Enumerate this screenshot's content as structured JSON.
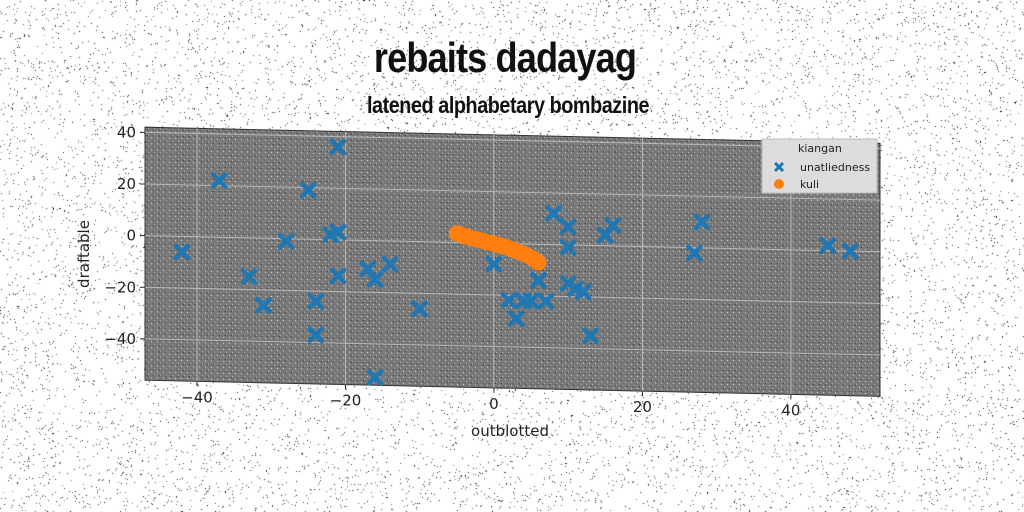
{
  "header": {
    "title": "rebaits dadayag",
    "subtitle": "latened alphabetary bombazine"
  },
  "chart_data": {
    "type": "scatter",
    "title": "rebaits dadayag",
    "subtitle": "latened alphabetary bombazine",
    "xlabel": "outblotted",
    "ylabel": "draftable",
    "xlim": [
      -47,
      52
    ],
    "ylim": [
      -56,
      42
    ],
    "xticks": [
      -40,
      -20,
      0,
      20,
      40
    ],
    "yticks": [
      40,
      20,
      0,
      -20,
      -40
    ],
    "xtick_labels": [
      "−40",
      "−20",
      "0",
      "20",
      "40"
    ],
    "ytick_labels": [
      "40",
      "20",
      "0",
      "−20",
      "−40"
    ],
    "grid": true,
    "legend": {
      "title": "kiangan",
      "placement": "top-right"
    },
    "series": [
      {
        "name": "unatliedness",
        "marker": "x",
        "color": "#1f77b4",
        "points": [
          {
            "x": -42,
            "y": -6
          },
          {
            "x": -37,
            "y": 22
          },
          {
            "x": -33,
            "y": -15
          },
          {
            "x": -31,
            "y": -26
          },
          {
            "x": -28,
            "y": -1
          },
          {
            "x": -25,
            "y": 19
          },
          {
            "x": -24,
            "y": -24
          },
          {
            "x": -24,
            "y": -37
          },
          {
            "x": -22,
            "y": 2
          },
          {
            "x": -21,
            "y": 3
          },
          {
            "x": -21,
            "y": -14
          },
          {
            "x": -21,
            "y": 36
          },
          {
            "x": -17,
            "y": -11
          },
          {
            "x": -16,
            "y": -15
          },
          {
            "x": -16,
            "y": -53
          },
          {
            "x": -14,
            "y": -9
          },
          {
            "x": -10,
            "y": -26
          },
          {
            "x": 0,
            "y": -8
          },
          {
            "x": 2,
            "y": -22
          },
          {
            "x": 3,
            "y": -29
          },
          {
            "x": 4,
            "y": -22
          },
          {
            "x": 5,
            "y": -22
          },
          {
            "x": 6,
            "y": -14
          },
          {
            "x": 7,
            "y": -22
          },
          {
            "x": 8,
            "y": 12
          },
          {
            "x": 10,
            "y": -15
          },
          {
            "x": 10,
            "y": 7
          },
          {
            "x": 10,
            "y": -1
          },
          {
            "x": 11,
            "y": -17
          },
          {
            "x": 12,
            "y": -18
          },
          {
            "x": 13,
            "y": -35
          },
          {
            "x": 15,
            "y": 4
          },
          {
            "x": 16,
            "y": 8
          },
          {
            "x": 27,
            "y": -2
          },
          {
            "x": 28,
            "y": 10
          },
          {
            "x": 45,
            "y": 2
          },
          {
            "x": 48,
            "y": 0
          }
        ]
      },
      {
        "name": "kuli",
        "marker": "o",
        "color": "#ff7f0e",
        "points": [
          {
            "x": -5,
            "y": 3.5
          },
          {
            "x": -4.5,
            "y": 3.2
          },
          {
            "x": -4,
            "y": 2.5
          },
          {
            "x": -3.5,
            "y": 2.2
          },
          {
            "x": -3,
            "y": 1.8
          },
          {
            "x": -2.5,
            "y": 1.5
          },
          {
            "x": -2,
            "y": 1.2
          },
          {
            "x": -1.5,
            "y": 0.8
          },
          {
            "x": -1,
            "y": 0.5
          },
          {
            "x": -0.5,
            "y": 0.2
          },
          {
            "x": 0,
            "y": -0.2
          },
          {
            "x": 0.5,
            "y": -0.5
          },
          {
            "x": 1,
            "y": -1
          },
          {
            "x": 1.5,
            "y": -1.3
          },
          {
            "x": 2,
            "y": -1.8
          },
          {
            "x": 2.5,
            "y": -2.2
          },
          {
            "x": 3,
            "y": -2.8
          },
          {
            "x": 3.5,
            "y": -3.2
          },
          {
            "x": 4,
            "y": -3.8
          },
          {
            "x": 4.5,
            "y": -4.5
          },
          {
            "x": 5,
            "y": -5.2
          },
          {
            "x": 5.5,
            "y": -6
          },
          {
            "x": 6,
            "y": -7
          }
        ]
      }
    ]
  }
}
